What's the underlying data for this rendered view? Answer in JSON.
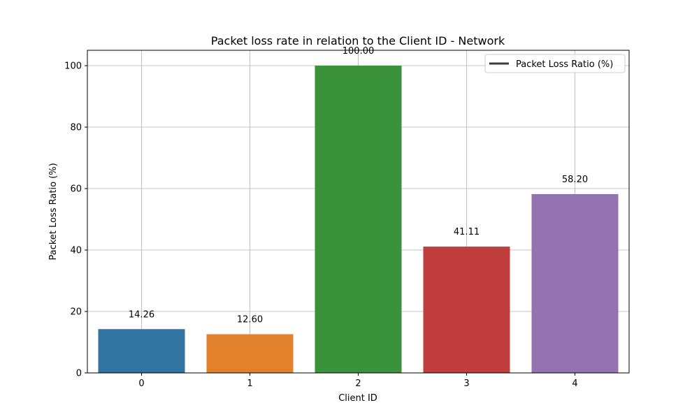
{
  "chart_data": {
    "type": "bar",
    "title": "Packet loss rate in relation to the Client ID - Network",
    "xlabel": "Client ID",
    "ylabel": "Packet Loss Ratio (%)",
    "categories": [
      "0",
      "1",
      "2",
      "3",
      "4"
    ],
    "values": [
      14.26,
      12.6,
      100.0,
      41.11,
      58.2
    ],
    "value_labels": [
      "14.26",
      "12.60",
      "100.00",
      "41.11",
      "58.20"
    ],
    "colors": [
      "#3274a1",
      "#e1812c",
      "#3a923a",
      "#c03d3e",
      "#9372b2"
    ],
    "ylim": [
      0,
      105
    ],
    "yticks": [
      0,
      20,
      40,
      60,
      80,
      100
    ],
    "grid": true,
    "legend": {
      "position": "top-right",
      "label": "Packet Loss Ratio (%)",
      "line_color": "#3b3b3b"
    }
  }
}
